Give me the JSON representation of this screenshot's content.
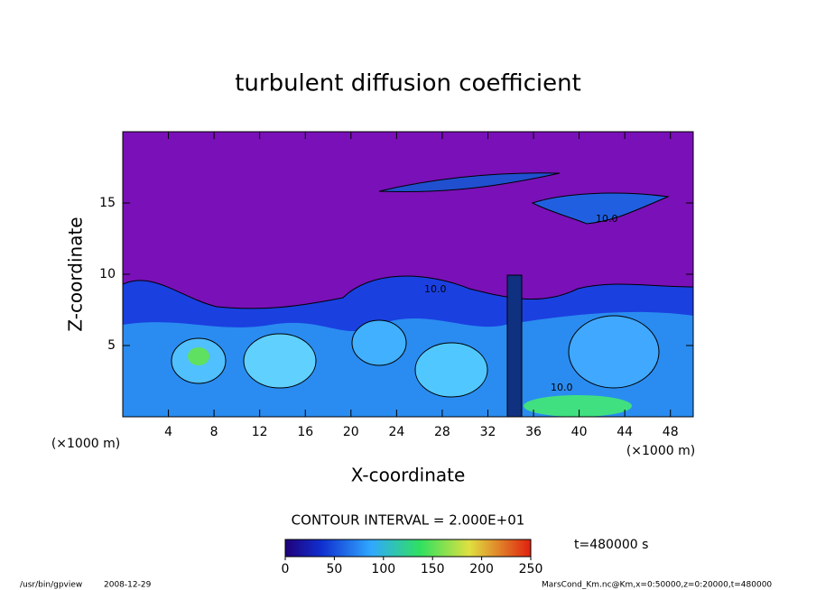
{
  "chart_data": {
    "type": "heatmap",
    "title": "turbulent diffusion coefficient",
    "xlabel": "X-coordinate",
    "ylabel": "Z-coordinate",
    "axis_unit": "(×1000 m)",
    "xlim": [
      0,
      50
    ],
    "xticks": [
      4,
      8,
      12,
      16,
      20,
      24,
      28,
      32,
      36,
      40,
      44,
      48
    ],
    "ylim": [
      0,
      20
    ],
    "yticks": [
      5,
      10,
      15
    ],
    "contour_label": "10.0",
    "contour_interval": "CONTOUR INTERVAL = 2.000E+01",
    "time": "t=480000 s",
    "colorbar": {
      "lim": [
        0,
        250
      ],
      "ticks": [
        0,
        50,
        100,
        150,
        200,
        250
      ]
    },
    "footer_program": "/usr/bin/gpview",
    "footer_date": "2008-12-29",
    "footer_source": "MarsCond_Km.nc@Km,x=0:50000,z=0:20000,t=480000"
  }
}
